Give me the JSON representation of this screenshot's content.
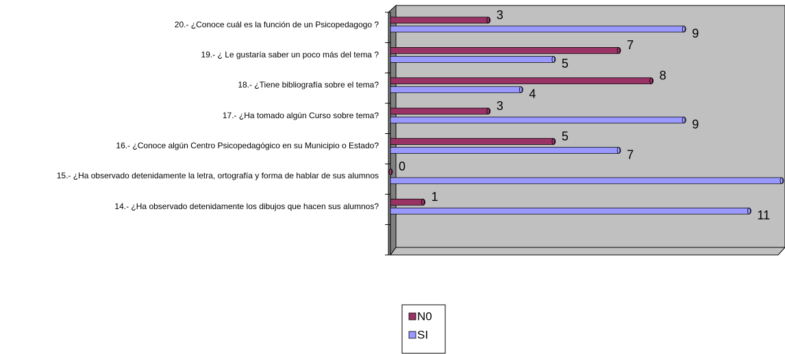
{
  "chart_data": {
    "type": "bar",
    "orientation": "horizontal",
    "three_d": true,
    "categories": [
      "20.- ¿Conoce cuál es la función de un Psicopedagogo ?",
      "19.- ¿ Le gustaría saber un poco más del tema ?",
      "18.- ¿Tiene bibliografía sobre el tema?",
      "17.- ¿Ha tomado algún Curso sobre  tema?",
      "16.- ¿Conoce algún Centro Psicopedagógico en su Municipio o   Estado?",
      "15.- ¿Ha observado detenidamente la letra, ortografía y forma de hablar  de sus alumnos",
      "14.- ¿Ha observado detenidamente los dibujos  que hacen sus alumnos?",
      null
    ],
    "series": [
      {
        "name": "N0",
        "color": "#993366",
        "values": [
          3,
          7,
          8,
          3,
          5,
          0,
          1,
          null
        ]
      },
      {
        "name": "SI",
        "color": "#9999ff",
        "values": [
          9,
          5,
          4,
          9,
          7,
          12,
          11,
          null
        ]
      }
    ],
    "xlim": [
      0,
      12
    ],
    "legend": "bottom"
  }
}
